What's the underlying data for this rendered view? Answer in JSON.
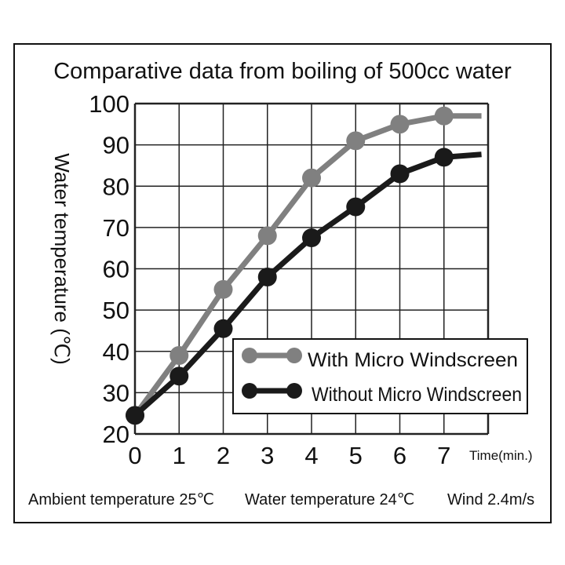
{
  "chart_data": {
    "type": "line",
    "title": "Comparative data from boiling of 500cc water",
    "xlabel": "Time(min.)",
    "ylabel": "Water temperature (℃)",
    "xlim": [
      0,
      8
    ],
    "ylim": [
      20,
      100
    ],
    "x_ticks": [
      "0",
      "1",
      "2",
      "3",
      "4",
      "5",
      "6",
      "7"
    ],
    "y_ticks": [
      "20",
      "30",
      "40",
      "50",
      "60",
      "70",
      "80",
      "90",
      "100"
    ],
    "grid": true,
    "legend_position": "bottom-right",
    "series": [
      {
        "name": "With Micro Windscreen",
        "color": "#808080",
        "x": [
          0,
          1,
          2,
          3,
          4,
          5,
          6,
          7
        ],
        "values": [
          24.5,
          39,
          55,
          68,
          82,
          91,
          95,
          97
        ],
        "tail": [
          7.85,
          97
        ]
      },
      {
        "name": "Without Micro Windscreen",
        "color": "#1a1a1a",
        "x": [
          0,
          1,
          2,
          3,
          4,
          5,
          6,
          7
        ],
        "values": [
          24.5,
          34,
          45.5,
          58,
          67.5,
          75,
          83,
          87
        ],
        "tail": [
          7.85,
          87.7
        ]
      }
    ],
    "footnote": {
      "ambient": "Ambient temperature 25℃",
      "water": "Water temperature 24℃",
      "wind": "Wind 2.4m/s"
    }
  }
}
